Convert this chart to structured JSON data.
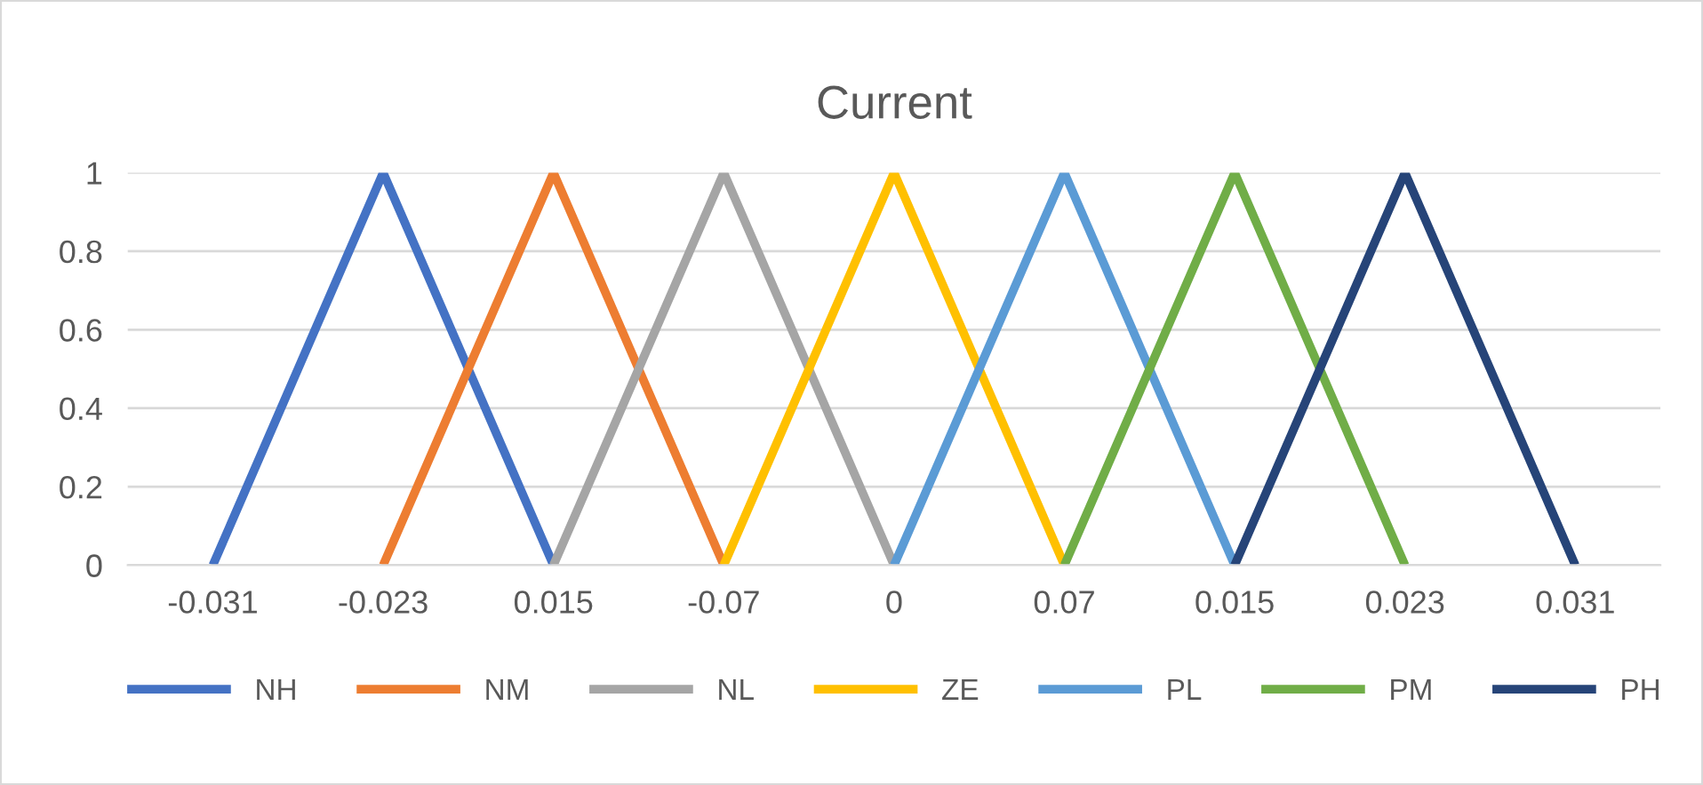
{
  "chart_data": {
    "type": "line",
    "title": "Current",
    "categories": [
      "-0.031",
      "-0.023",
      "0.015",
      "-0.07",
      "0",
      "0.07",
      "0.015",
      "0.023",
      "0.031"
    ],
    "series": [
      {
        "name": "NH",
        "color": "#4472c4",
        "values": [
          0,
          1,
          0,
          null,
          null,
          null,
          null,
          null,
          null
        ]
      },
      {
        "name": "NM",
        "color": "#ed7d31",
        "values": [
          null,
          0,
          1,
          0,
          null,
          null,
          null,
          null,
          null
        ]
      },
      {
        "name": "NL",
        "color": "#a5a5a5",
        "values": [
          null,
          null,
          0,
          1,
          0,
          null,
          null,
          null,
          null
        ]
      },
      {
        "name": "ZE",
        "color": "#ffc000",
        "values": [
          null,
          null,
          null,
          0,
          1,
          0,
          null,
          null,
          null
        ]
      },
      {
        "name": "PL",
        "color": "#5b9bd5",
        "values": [
          null,
          null,
          null,
          null,
          0,
          1,
          0,
          null,
          null
        ]
      },
      {
        "name": "PM",
        "color": "#70ad47",
        "values": [
          null,
          null,
          null,
          null,
          null,
          0,
          1,
          0,
          null
        ]
      },
      {
        "name": "PH",
        "color": "#264478",
        "values": [
          null,
          null,
          null,
          null,
          null,
          null,
          0,
          1,
          0
        ]
      }
    ],
    "ylim": [
      0,
      1
    ],
    "yticks": [
      0,
      0.2,
      0.4,
      0.6,
      0.8,
      1
    ],
    "grid": "y",
    "legend": "bottom",
    "marker": "none",
    "line_style": "solid"
  }
}
